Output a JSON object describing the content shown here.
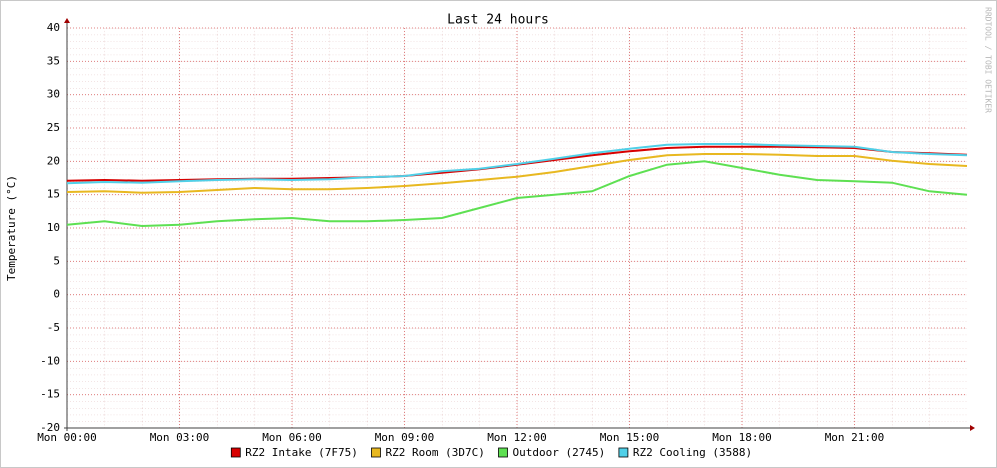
{
  "chart_data": {
    "type": "line",
    "title": "Last 24 hours",
    "y_label": "Temperature (°C)",
    "watermark": "RRDTOOL / TOBI OETIKER",
    "xlim": [
      0,
      24
    ],
    "xticks": [
      {
        "value": 0,
        "label": "Mon 00:00"
      },
      {
        "value": 3,
        "label": "Mon 03:00"
      },
      {
        "value": 6,
        "label": "Mon 06:00"
      },
      {
        "value": 9,
        "label": "Mon 09:00"
      },
      {
        "value": 12,
        "label": "Mon 12:00"
      },
      {
        "value": 15,
        "label": "Mon 15:00"
      },
      {
        "value": 18,
        "label": "Mon 18:00"
      },
      {
        "value": 21,
        "label": "Mon 21:00"
      }
    ],
    "ylim": [
      -20,
      40
    ],
    "yticks": [
      -20,
      -15,
      -10,
      -5,
      0,
      5,
      10,
      15,
      20,
      25,
      30,
      35,
      40
    ],
    "grid": true,
    "x": [
      0,
      1,
      2,
      3,
      4,
      5,
      6,
      7,
      8,
      9,
      10,
      11,
      12,
      13,
      14,
      15,
      16,
      17,
      18,
      19,
      20,
      21,
      22,
      23,
      24
    ],
    "series": [
      {
        "name": "RZ2 Intake (7F75)",
        "color": "#d80000",
        "values": [
          17.1,
          17.2,
          17.1,
          17.2,
          17.3,
          17.4,
          17.4,
          17.5,
          17.6,
          17.8,
          18.3,
          18.8,
          19.5,
          20.2,
          20.9,
          21.5,
          22.0,
          22.2,
          22.2,
          22.2,
          22.1,
          22.0,
          21.4,
          21.2,
          21.0
        ]
      },
      {
        "name": "RZ2 Room (3D7C)",
        "color": "#e8b820",
        "values": [
          15.4,
          15.5,
          15.3,
          15.4,
          15.7,
          16.0,
          15.8,
          15.8,
          16.0,
          16.3,
          16.7,
          17.2,
          17.7,
          18.4,
          19.3,
          20.2,
          20.9,
          21.1,
          21.1,
          21.0,
          20.8,
          20.8,
          20.1,
          19.6,
          19.3
        ]
      },
      {
        "name": "Outdoor (2745)",
        "color": "#5ee052",
        "values": [
          10.5,
          11.0,
          10.3,
          10.5,
          11.0,
          11.3,
          11.5,
          11.0,
          11.0,
          11.2,
          11.5,
          13.0,
          14.5,
          15.0,
          15.5,
          17.8,
          19.5,
          20.0,
          19.0,
          18.0,
          17.2,
          17.0,
          16.8,
          15.5,
          15.0
        ]
      },
      {
        "name": "RZ2 Cooling (3588)",
        "color": "#50d0e8",
        "values": [
          16.7,
          16.9,
          16.8,
          17.0,
          17.2,
          17.3,
          17.2,
          17.3,
          17.6,
          17.8,
          18.5,
          18.9,
          19.6,
          20.4,
          21.2,
          21.9,
          22.5,
          22.6,
          22.6,
          22.4,
          22.3,
          22.2,
          21.4,
          21.1,
          20.9
        ]
      }
    ]
  }
}
